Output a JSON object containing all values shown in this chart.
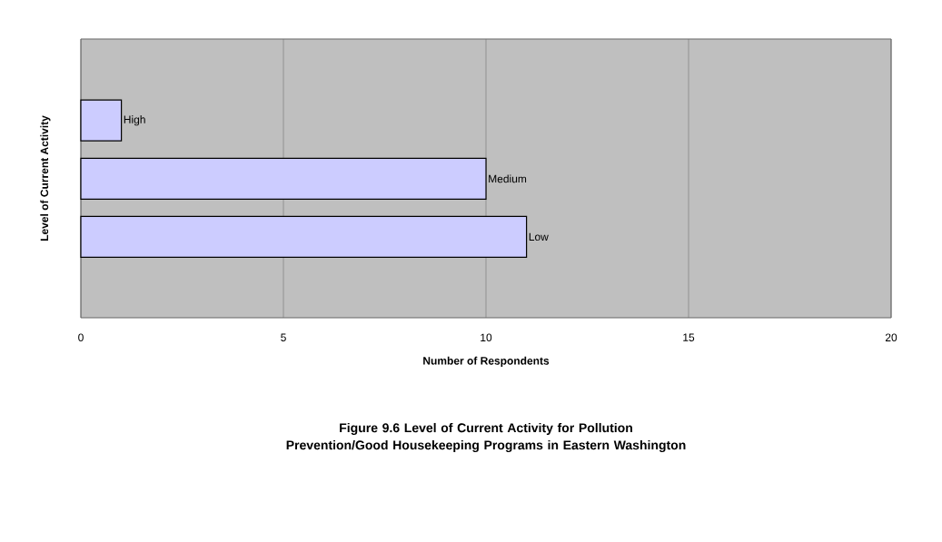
{
  "chart_data": {
    "type": "bar",
    "orientation": "horizontal",
    "title": "Figure 9.6  Level of Current Activity for Pollution Prevention/Good Housekeeping Programs in Eastern Washington",
    "xlabel": "Number of Respondents",
    "ylabel": "Level of Current Activity",
    "categories": [
      "High",
      "Medium",
      "Low"
    ],
    "values": [
      1,
      10,
      11
    ],
    "color": "#ccccff",
    "xlim": [
      0,
      20
    ],
    "xticks": [
      0,
      5,
      10,
      15,
      20
    ],
    "grid": "x"
  }
}
